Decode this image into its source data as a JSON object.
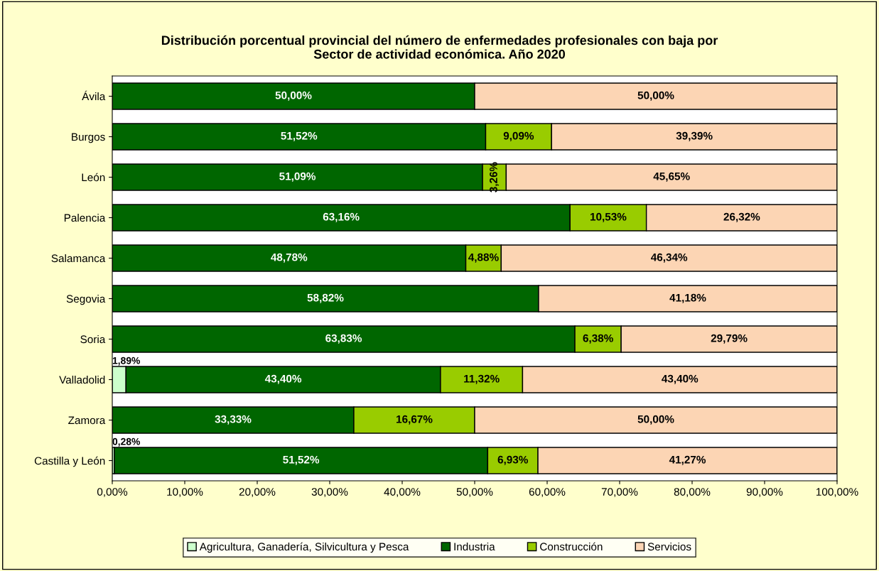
{
  "chart_data": {
    "type": "bar",
    "orientation": "horizontal",
    "stacked": true,
    "title": "Distribución porcentual provincial del número de enfermedades profesionales con baja por\nSector de actividad económica. Año 2020",
    "categories": [
      "Ávila",
      "Burgos",
      "León",
      "Palencia",
      "Salamanca",
      "Segovia",
      "Soria",
      "Valladolid",
      "Zamora",
      "Castilla y León"
    ],
    "series": [
      {
        "name": "Agricultura, Ganadería, Silvicultura y Pesca",
        "color": "#ccffcc",
        "values": [
          null,
          null,
          null,
          null,
          null,
          null,
          null,
          1.89,
          null,
          0.28
        ],
        "value_labels": [
          null,
          null,
          null,
          null,
          null,
          null,
          null,
          "1,89%",
          null,
          "0,28%"
        ]
      },
      {
        "name": "Industria",
        "color": "#006600",
        "values": [
          50.0,
          51.52,
          51.09,
          63.16,
          48.78,
          58.82,
          63.83,
          43.4,
          33.33,
          51.52
        ],
        "value_labels": [
          "50,00%",
          "51,52%",
          "51,09%",
          "63,16%",
          "48,78%",
          "58,82%",
          "63,83%",
          "43,40%",
          "33,33%",
          "51,52%"
        ]
      },
      {
        "name": "Construcción",
        "color": "#99cc00",
        "values": [
          null,
          9.09,
          3.26,
          10.53,
          4.88,
          null,
          6.38,
          11.32,
          16.67,
          6.93
        ],
        "value_labels": [
          null,
          "9,09%",
          "3,26%",
          "10,53%",
          "4,88%",
          null,
          "6,38%",
          "11,32%",
          "16,67%",
          "6,93%"
        ]
      },
      {
        "name": "Servicios",
        "color": "#fcd5b4",
        "values": [
          50.0,
          39.39,
          45.65,
          26.32,
          46.34,
          41.18,
          29.79,
          43.4,
          50.0,
          41.27
        ],
        "value_labels": [
          "50,00%",
          "39,39%",
          "45,65%",
          "26,32%",
          "46,34%",
          "41,18%",
          "29,79%",
          "43,40%",
          "50,00%",
          "41,27%"
        ]
      }
    ],
    "xlim": [
      0,
      100
    ],
    "xticks": [
      {
        "value": 0,
        "label": "0,00%"
      },
      {
        "value": 10,
        "label": "10,00%"
      },
      {
        "value": 20,
        "label": "20,00%"
      },
      {
        "value": 30,
        "label": "30,00%"
      },
      {
        "value": 40,
        "label": "40,00%"
      },
      {
        "value": 50,
        "label": "50,00%"
      },
      {
        "value": 60,
        "label": "60,00%"
      },
      {
        "value": 70,
        "label": "70,00%"
      },
      {
        "value": 80,
        "label": "80,00%"
      },
      {
        "value": 90,
        "label": "90,00%"
      },
      {
        "value": 100,
        "label": "100,00%"
      }
    ],
    "grid": false,
    "legend": "bottom"
  }
}
